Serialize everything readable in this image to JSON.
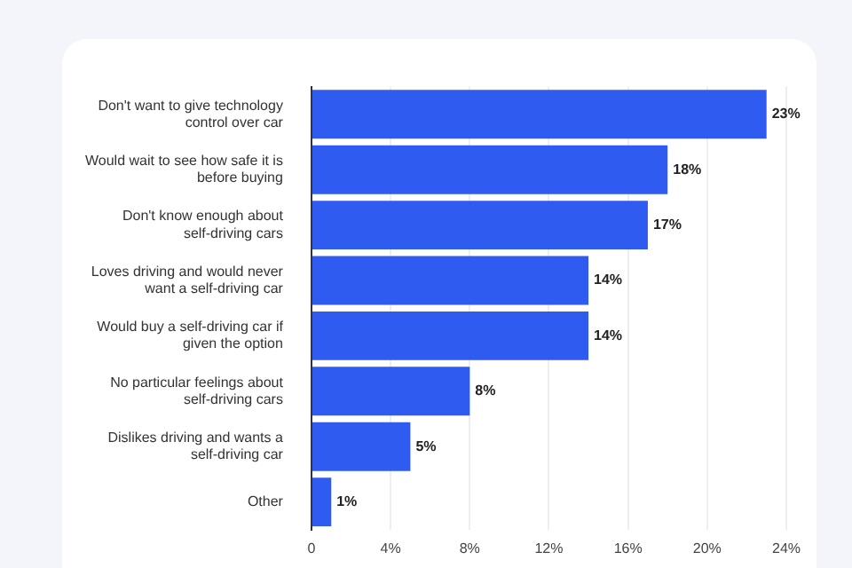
{
  "chart_data": {
    "type": "bar",
    "orientation": "horizontal",
    "categories": [
      "Don't want to give technology control over car",
      "Would wait to see how safe it is before buying",
      "Don't know enough about self-driving cars",
      "Loves driving and would never want a self-driving car",
      "Would buy a self-driving car if given the option",
      "No particular feelings about self-driving cars",
      "Dislikes driving and wants a self-driving car",
      "Other"
    ],
    "values": [
      23,
      18,
      17,
      14,
      14,
      8,
      5,
      1
    ],
    "value_labels": [
      "23%",
      "18%",
      "17%",
      "14%",
      "14%",
      "8%",
      "5%",
      "1%"
    ],
    "color": "#2f5bf0",
    "xlim": [
      0,
      24
    ],
    "xticks": [
      0,
      {
        "value": 4,
        "label": "4%"
      },
      {
        "value": 8,
        "label": "8%"
      },
      {
        "value": 12,
        "label": "12%"
      },
      {
        "value": 16,
        "label": "16%"
      },
      {
        "value": 20,
        "label": "20%"
      },
      {
        "value": 24,
        "label": "24%"
      }
    ],
    "grid": "x"
  }
}
